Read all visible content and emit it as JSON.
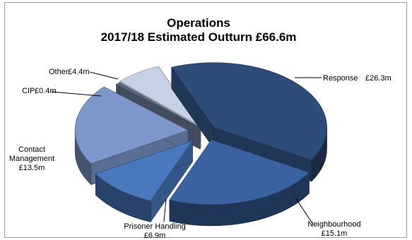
{
  "chart_data": {
    "type": "pie",
    "style": "exploded-3d",
    "title_line1": "Operations",
    "title_line2": "2017/18 Estimated Outturn £66.6m",
    "unit": "£m",
    "total": 66.6,
    "slices": [
      {
        "key": "response",
        "name": "Response",
        "value": 26.3,
        "value_label": "£26.3m",
        "color": "#2d4d78"
      },
      {
        "key": "neighbourhood",
        "name": "Neighbourhood",
        "value": 15.1,
        "value_label": "£15.1m",
        "color": "#3a62a0"
      },
      {
        "key": "prisoner",
        "name": "Prisoner Handling",
        "value": 6.9,
        "value_label": "£6.9m",
        "color": "#4a78be"
      },
      {
        "key": "contact",
        "name": "Contact Management",
        "name_line1": "Contact",
        "name_line2": "Management",
        "value": 13.5,
        "value_label": "£13.5m",
        "color": "#7d97cc"
      },
      {
        "key": "cip",
        "name": "CIP",
        "value": 0.4,
        "value_label": "£0.4m",
        "color": "#5b6a80"
      },
      {
        "key": "other",
        "name": "Other",
        "value": 4.4,
        "value_label": "£4.4m",
        "color": "#c5d2e6"
      }
    ]
  }
}
